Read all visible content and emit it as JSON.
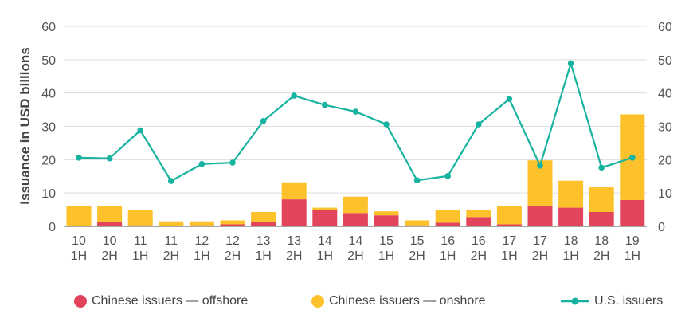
{
  "chart_data": {
    "type": "bar",
    "stacked": true,
    "categories": [
      "10 1H",
      "10 2H",
      "11 1H",
      "11 2H",
      "12 1H",
      "12 2H",
      "13 1H",
      "13 2H",
      "14 1H",
      "14 2H",
      "15 1H",
      "15 2H",
      "16 1H",
      "16 2H",
      "17 1H",
      "17 2H",
      "18 1H",
      "18 2H",
      "19 1H"
    ],
    "ylabel": "Issuance in USD billions",
    "ylim": [
      0,
      60
    ],
    "yticks": [
      0,
      10,
      20,
      30,
      40,
      50,
      60
    ],
    "grid": true,
    "legend_position": "bottom",
    "series": [
      {
        "name": "Chinese issuers — offshore",
        "type": "bar",
        "color": "#e2445c",
        "values": [
          0,
          1.2,
          0.3,
          0,
          0.3,
          0.6,
          1.2,
          8.1,
          5.0,
          4.0,
          3.3,
          0.3,
          1.1,
          2.8,
          0.6,
          6.0,
          5.6,
          4.3,
          7.9
        ]
      },
      {
        "name": "Chinese issuers — onshore",
        "type": "bar",
        "color": "#fcc12b",
        "values": [
          6.2,
          5.0,
          4.5,
          1.5,
          1.2,
          1.2,
          3.1,
          5.1,
          0.6,
          4.9,
          1.2,
          1.5,
          3.7,
          2.0,
          5.5,
          13.8,
          8.1,
          7.4,
          25.7
        ]
      },
      {
        "name": "U.S. issuers",
        "type": "line",
        "color": "#17b3a0",
        "values": [
          20.6,
          20.4,
          28.8,
          13.6,
          18.7,
          19.1,
          31.6,
          39.2,
          36.4,
          34.4,
          30.6,
          13.8,
          15.1,
          30.6,
          38.2,
          18.2,
          48.9,
          17.6,
          20.6
        ]
      }
    ]
  }
}
